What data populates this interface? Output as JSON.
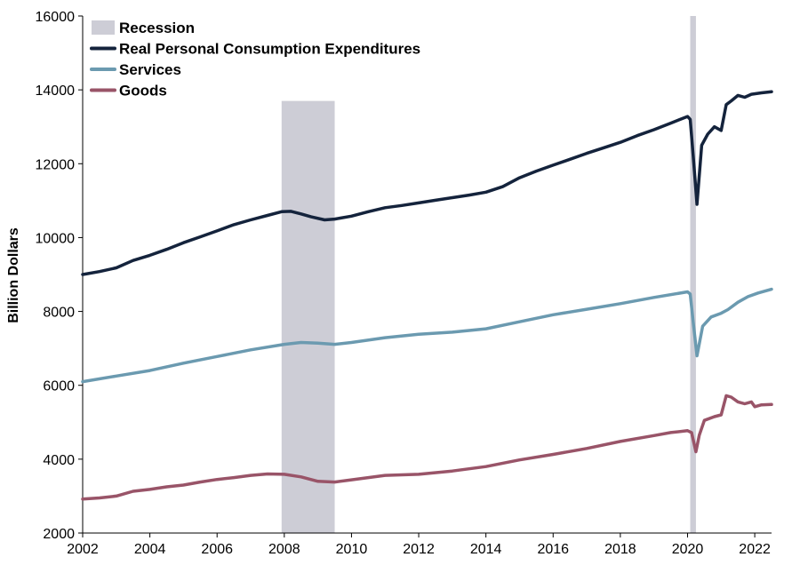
{
  "chart_data": {
    "type": "line",
    "title": "",
    "xlabel": "",
    "ylabel": "Billion Dollars",
    "xlim": [
      2002,
      2022.5
    ],
    "ylim": [
      2000,
      16000
    ],
    "x_ticks": [
      2002,
      2004,
      2006,
      2008,
      2010,
      2012,
      2014,
      2016,
      2018,
      2020,
      2022
    ],
    "y_ticks": [
      2000,
      4000,
      6000,
      8000,
      10000,
      12000,
      14000,
      16000
    ],
    "grid": false,
    "legend_position": "top-left",
    "recession_label": "Recession",
    "recession_color": "#cdcdd6",
    "recessions": [
      {
        "start": 2007.92,
        "end": 2009.5,
        "top": 13700
      },
      {
        "start": 2020.08,
        "end": 2020.25,
        "top": 16000
      }
    ],
    "series": [
      {
        "name": "Real Personal Consumption Expenditures",
        "color": "#14233c",
        "points": [
          [
            2002.0,
            9000
          ],
          [
            2002.5,
            9080
          ],
          [
            2003.0,
            9180
          ],
          [
            2003.5,
            9380
          ],
          [
            2004.0,
            9520
          ],
          [
            2004.5,
            9680
          ],
          [
            2005.0,
            9860
          ],
          [
            2005.5,
            10020
          ],
          [
            2006.0,
            10180
          ],
          [
            2006.5,
            10350
          ],
          [
            2007.0,
            10480
          ],
          [
            2007.5,
            10600
          ],
          [
            2007.92,
            10700
          ],
          [
            2008.2,
            10710
          ],
          [
            2008.5,
            10640
          ],
          [
            2008.8,
            10560
          ],
          [
            2009.2,
            10480
          ],
          [
            2009.5,
            10500
          ],
          [
            2010.0,
            10580
          ],
          [
            2010.5,
            10700
          ],
          [
            2011.0,
            10810
          ],
          [
            2011.5,
            10870
          ],
          [
            2012.0,
            10940
          ],
          [
            2012.5,
            11010
          ],
          [
            2013.0,
            11080
          ],
          [
            2013.5,
            11150
          ],
          [
            2014.0,
            11230
          ],
          [
            2014.5,
            11380
          ],
          [
            2015.0,
            11620
          ],
          [
            2015.5,
            11800
          ],
          [
            2016.0,
            11960
          ],
          [
            2016.5,
            12120
          ],
          [
            2017.0,
            12280
          ],
          [
            2017.5,
            12430
          ],
          [
            2018.0,
            12580
          ],
          [
            2018.5,
            12760
          ],
          [
            2019.0,
            12920
          ],
          [
            2019.5,
            13100
          ],
          [
            2020.0,
            13280
          ],
          [
            2020.08,
            13200
          ],
          [
            2020.17,
            12200
          ],
          [
            2020.28,
            10900
          ],
          [
            2020.42,
            12500
          ],
          [
            2020.6,
            12800
          ],
          [
            2020.8,
            13000
          ],
          [
            2021.0,
            12900
          ],
          [
            2021.15,
            13600
          ],
          [
            2021.3,
            13700
          ],
          [
            2021.5,
            13850
          ],
          [
            2021.7,
            13800
          ],
          [
            2021.9,
            13880
          ],
          [
            2022.2,
            13920
          ],
          [
            2022.5,
            13950
          ]
        ]
      },
      {
        "name": "Services",
        "color": "#6b9ab0",
        "points": [
          [
            2002.0,
            6100
          ],
          [
            2003.0,
            6250
          ],
          [
            2004.0,
            6400
          ],
          [
            2005.0,
            6600
          ],
          [
            2006.0,
            6780
          ],
          [
            2007.0,
            6960
          ],
          [
            2008.0,
            7110
          ],
          [
            2008.5,
            7160
          ],
          [
            2009.0,
            7140
          ],
          [
            2009.5,
            7110
          ],
          [
            2010.0,
            7160
          ],
          [
            2011.0,
            7290
          ],
          [
            2012.0,
            7380
          ],
          [
            2013.0,
            7440
          ],
          [
            2014.0,
            7530
          ],
          [
            2015.0,
            7720
          ],
          [
            2016.0,
            7910
          ],
          [
            2017.0,
            8060
          ],
          [
            2018.0,
            8210
          ],
          [
            2019.0,
            8380
          ],
          [
            2020.0,
            8530
          ],
          [
            2020.08,
            8470
          ],
          [
            2020.17,
            7700
          ],
          [
            2020.28,
            6800
          ],
          [
            2020.45,
            7600
          ],
          [
            2020.7,
            7850
          ],
          [
            2021.0,
            7950
          ],
          [
            2021.2,
            8050
          ],
          [
            2021.5,
            8250
          ],
          [
            2021.8,
            8400
          ],
          [
            2022.1,
            8500
          ],
          [
            2022.5,
            8600
          ]
        ]
      },
      {
        "name": "Goods",
        "color": "#995468",
        "points": [
          [
            2002.0,
            2920
          ],
          [
            2002.5,
            2950
          ],
          [
            2003.0,
            3000
          ],
          [
            2003.5,
            3130
          ],
          [
            2004.0,
            3180
          ],
          [
            2004.5,
            3250
          ],
          [
            2005.0,
            3300
          ],
          [
            2005.5,
            3380
          ],
          [
            2006.0,
            3450
          ],
          [
            2006.5,
            3500
          ],
          [
            2007.0,
            3560
          ],
          [
            2007.5,
            3600
          ],
          [
            2008.0,
            3590
          ],
          [
            2008.5,
            3520
          ],
          [
            2009.0,
            3400
          ],
          [
            2009.5,
            3380
          ],
          [
            2010.0,
            3440
          ],
          [
            2010.5,
            3500
          ],
          [
            2011.0,
            3560
          ],
          [
            2012.0,
            3590
          ],
          [
            2013.0,
            3680
          ],
          [
            2014.0,
            3800
          ],
          [
            2015.0,
            3980
          ],
          [
            2016.0,
            4130
          ],
          [
            2017.0,
            4290
          ],
          [
            2018.0,
            4480
          ],
          [
            2019.0,
            4640
          ],
          [
            2019.5,
            4720
          ],
          [
            2020.0,
            4770
          ],
          [
            2020.12,
            4720
          ],
          [
            2020.25,
            4200
          ],
          [
            2020.35,
            4650
          ],
          [
            2020.5,
            5050
          ],
          [
            2020.8,
            5150
          ],
          [
            2021.0,
            5200
          ],
          [
            2021.15,
            5720
          ],
          [
            2021.3,
            5680
          ],
          [
            2021.5,
            5550
          ],
          [
            2021.7,
            5500
          ],
          [
            2021.9,
            5550
          ],
          [
            2022.0,
            5420
          ],
          [
            2022.2,
            5470
          ],
          [
            2022.5,
            5480
          ]
        ]
      }
    ]
  }
}
